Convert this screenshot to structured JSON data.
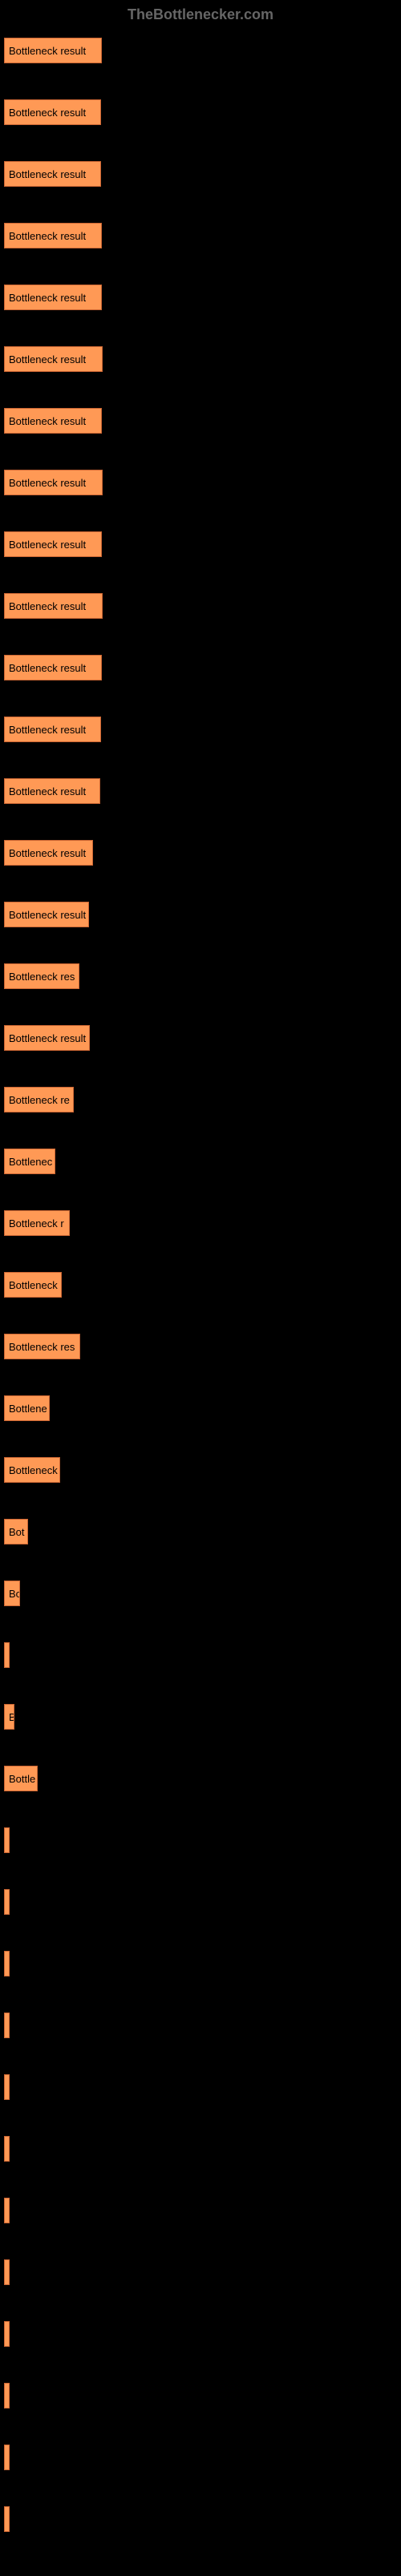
{
  "header": {
    "title": "TheBottlenecker.com"
  },
  "chart": {
    "type": "bar",
    "bar_color": "#ff9955",
    "bar_border_color": "#cc6633",
    "background_color": "#000000",
    "text_color": "#000000",
    "header_color": "#666666",
    "max_width": 123,
    "bars": [
      {
        "label": "Bottleneck result",
        "width": 122
      },
      {
        "label": "Bottleneck result",
        "width": 121
      },
      {
        "label": "Bottleneck result",
        "width": 121
      },
      {
        "label": "Bottleneck result",
        "width": 122
      },
      {
        "label": "Bottleneck result",
        "width": 122
      },
      {
        "label": "Bottleneck result",
        "width": 123
      },
      {
        "label": "Bottleneck result",
        "width": 122
      },
      {
        "label": "Bottleneck result",
        "width": 123
      },
      {
        "label": "Bottleneck result",
        "width": 122
      },
      {
        "label": "Bottleneck result",
        "width": 123
      },
      {
        "label": "Bottleneck result",
        "width": 122
      },
      {
        "label": "Bottleneck result",
        "width": 121
      },
      {
        "label": "Bottleneck result",
        "width": 120
      },
      {
        "label": "Bottleneck result",
        "width": 111
      },
      {
        "label": "Bottleneck result",
        "width": 106
      },
      {
        "label": "Bottleneck res",
        "width": 94
      },
      {
        "label": "Bottleneck result",
        "width": 107
      },
      {
        "label": "Bottleneck re",
        "width": 87
      },
      {
        "label": "Bottlenec",
        "width": 64
      },
      {
        "label": "Bottleneck r",
        "width": 82
      },
      {
        "label": "Bottleneck",
        "width": 72
      },
      {
        "label": "Bottleneck res",
        "width": 95
      },
      {
        "label": "Bottlene",
        "width": 57
      },
      {
        "label": "Bottleneck",
        "width": 70
      },
      {
        "label": "Bot",
        "width": 30
      },
      {
        "label": "Bo",
        "width": 20
      },
      {
        "label": "",
        "width": 3
      },
      {
        "label": "B",
        "width": 13
      },
      {
        "label": "Bottle",
        "width": 42
      },
      {
        "label": "",
        "width": 4
      },
      {
        "label": "",
        "width": 3
      },
      {
        "label": "",
        "width": 3
      },
      {
        "label": "",
        "width": 3
      },
      {
        "label": "",
        "width": 3
      },
      {
        "label": "",
        "width": 3
      },
      {
        "label": "",
        "width": 3
      },
      {
        "label": "",
        "width": 3
      },
      {
        "label": "",
        "width": 3
      },
      {
        "label": "",
        "width": 3
      },
      {
        "label": "",
        "width": 3
      },
      {
        "label": "",
        "width": 3
      }
    ]
  }
}
